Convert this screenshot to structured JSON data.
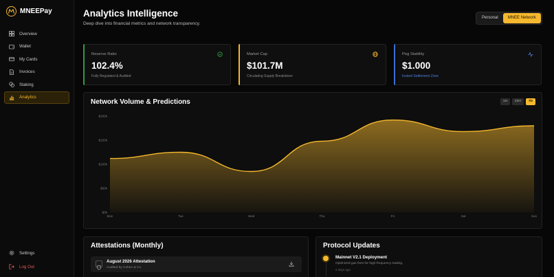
{
  "app": {
    "name": "MNEEPay"
  },
  "sidebar": {
    "items": [
      {
        "label": "Overview",
        "icon": "grid-icon"
      },
      {
        "label": "Wallet",
        "icon": "wallet-icon"
      },
      {
        "label": "My Cards",
        "icon": "card-icon"
      },
      {
        "label": "Invoices",
        "icon": "document-icon"
      },
      {
        "label": "Staking",
        "icon": "coins-icon"
      },
      {
        "label": "Analytics",
        "icon": "bar-chart-icon",
        "active": true
      }
    ],
    "settings_label": "Settings",
    "logout_label": "Log Out"
  },
  "header": {
    "title": "Analytics Intelligence",
    "subtitle": "Deep dive into financial metrics and network transparency.",
    "toggle": {
      "personal": "Personal",
      "network": "MNEE Network",
      "selected": "MNEE Network"
    }
  },
  "stats": [
    {
      "label": "Reserve Ratio",
      "value": "102.4%",
      "note": "Fully Regulated & Audited",
      "accent": "#2f9e44",
      "icon": "check-circle-icon"
    },
    {
      "label": "Market Cap",
      "value": "$101.7M",
      "note": "Circulating Supply Breakdown",
      "accent": "#f5b82e",
      "icon": "globe-icon"
    },
    {
      "label": "Peg Stability",
      "value": "$1.000",
      "note": "Instant Settlement Zone",
      "accent": "#3b6fd6",
      "icon": "pulse-icon"
    }
  ],
  "chart": {
    "title": "Network Volume & Predictions",
    "ranges": [
      "1H",
      "24H",
      "7D"
    ],
    "selected_range": "7D"
  },
  "chart_data": {
    "type": "area",
    "categories": [
      "Mon",
      "Tue",
      "Wed",
      "Thu",
      "Fri",
      "Sat",
      "Sun"
    ],
    "values": [
      112,
      125,
      85,
      148,
      192,
      168,
      180
    ],
    "yticks": [
      "$0k",
      "$50k",
      "$100k",
      "$150k",
      "$200k"
    ],
    "ylim": [
      0,
      200
    ],
    "grid": false,
    "color": "#f5b82e"
  },
  "attestations": {
    "title": "Attestations (Monthly)",
    "item": {
      "title": "August 2026 Attestation",
      "subtitle": "Audited by Cohen & Co"
    }
  },
  "updates": {
    "title": "Protocol Updates",
    "item": {
      "title": "Mainnet V2.1 Deployment",
      "desc": "Optimized gas fees for high-frequency trading.",
      "time": "2 days ago"
    }
  }
}
